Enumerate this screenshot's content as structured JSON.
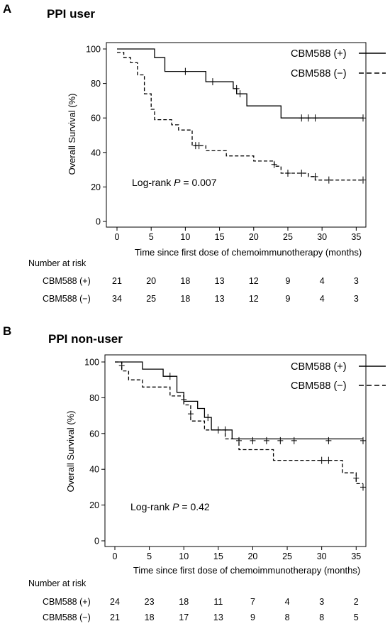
{
  "chart_data": [
    {
      "type": "line",
      "panel_letter": "A",
      "title": "PPI user",
      "xlabel": "Time since first dose of chemoimmunotherapy (months)",
      "ylabel": "Overall Survival (%)",
      "xlim": [
        0,
        36
      ],
      "ylim": [
        0,
        100
      ],
      "x_ticks": [
        0,
        5,
        10,
        15,
        20,
        25,
        30,
        35
      ],
      "y_ticks": [
        0,
        20,
        40,
        60,
        80,
        100
      ],
      "legend": "top-right",
      "grid": false,
      "annotation": {
        "prefix": "Log-rank ",
        "p_symbol": "P",
        "suffix": " = 0.007"
      },
      "series": [
        {
          "name": "CBM588 (+)",
          "style": "solid",
          "steps": [
            [
              0,
              100
            ],
            [
              5.5,
              100
            ],
            [
              5.5,
              95
            ],
            [
              7,
              95
            ],
            [
              7,
              87
            ],
            [
              13,
              87
            ],
            [
              13,
              81
            ],
            [
              17,
              81
            ],
            [
              17,
              77
            ],
            [
              17.5,
              77
            ],
            [
              17.5,
              74
            ],
            [
              19,
              74
            ],
            [
              19,
              67
            ],
            [
              24,
              67
            ],
            [
              24,
              60
            ],
            [
              36,
              60
            ]
          ],
          "censors": [
            [
              10,
              87
            ],
            [
              14,
              81
            ],
            [
              17.5,
              77
            ],
            [
              18,
              74
            ],
            [
              27,
              60
            ],
            [
              28,
              60
            ],
            [
              29,
              60
            ],
            [
              36,
              60
            ]
          ]
        },
        {
          "name": "CBM588 (−)",
          "style": "dashed",
          "steps": [
            [
              0,
              98
            ],
            [
              1,
              98
            ],
            [
              1,
              95
            ],
            [
              2,
              95
            ],
            [
              2,
              92
            ],
            [
              3,
              92
            ],
            [
              3,
              85
            ],
            [
              4,
              85
            ],
            [
              4,
              74
            ],
            [
              5,
              74
            ],
            [
              5,
              65
            ],
            [
              5.5,
              65
            ],
            [
              5.5,
              59
            ],
            [
              8,
              59
            ],
            [
              8,
              56
            ],
            [
              9,
              56
            ],
            [
              9,
              53
            ],
            [
              11,
              53
            ],
            [
              11,
              44
            ],
            [
              13,
              44
            ],
            [
              13,
              41
            ],
            [
              16,
              41
            ],
            [
              16,
              38
            ],
            [
              20,
              38
            ],
            [
              20,
              35
            ],
            [
              23,
              35
            ],
            [
              23,
              32
            ],
            [
              24,
              32
            ],
            [
              24,
              28
            ],
            [
              28,
              28
            ],
            [
              28,
              26
            ],
            [
              29,
              26
            ],
            [
              29,
              24
            ],
            [
              36,
              24
            ]
          ],
          "censors": [
            [
              11.5,
              44
            ],
            [
              12,
              44
            ],
            [
              23,
              33
            ],
            [
              25,
              28
            ],
            [
              27,
              28
            ],
            [
              29,
              26
            ],
            [
              31,
              24
            ],
            [
              36,
              24
            ]
          ]
        }
      ],
      "risk_table": {
        "title": "Number at risk",
        "times": [
          0,
          5,
          10,
          15,
          20,
          25,
          30,
          35
        ],
        "rows": [
          {
            "label": "CBM588 (+)",
            "values": [
              "21",
              "20",
              "18",
              "13",
              "12",
              "9",
              "4",
              "3"
            ]
          },
          {
            "label": "CBM588 (−)",
            "values": [
              "34",
              "25",
              "18",
              "13",
              "12",
              "9",
              "4",
              "3"
            ]
          }
        ]
      }
    },
    {
      "type": "line",
      "panel_letter": "B",
      "title": "PPI non-user",
      "xlabel": "Time since first dose of chemoimmunotherapy (months)",
      "ylabel": "Overall Survival (%)",
      "xlim": [
        0,
        36
      ],
      "ylim": [
        0,
        100
      ],
      "x_ticks": [
        0,
        5,
        10,
        15,
        20,
        25,
        30,
        35
      ],
      "y_ticks": [
        0,
        20,
        40,
        60,
        80,
        100
      ],
      "legend": "top-right",
      "grid": false,
      "annotation": {
        "prefix": "Log-rank ",
        "p_symbol": "P",
        "suffix": " = 0.42"
      },
      "series": [
        {
          "name": "CBM588 (+)",
          "style": "solid",
          "steps": [
            [
              0,
              100
            ],
            [
              4,
              100
            ],
            [
              4,
              96
            ],
            [
              7,
              96
            ],
            [
              7,
              92
            ],
            [
              9,
              92
            ],
            [
              9,
              83
            ],
            [
              10,
              83
            ],
            [
              10,
              78
            ],
            [
              12,
              78
            ],
            [
              12,
              74
            ],
            [
              13,
              74
            ],
            [
              13,
              69
            ],
            [
              14,
              69
            ],
            [
              14,
              62
            ],
            [
              17,
              62
            ],
            [
              17,
              57
            ],
            [
              36,
              57
            ]
          ],
          "censors": [
            [
              8,
              92
            ],
            [
              10,
              79
            ],
            [
              13.5,
              69
            ],
            [
              15,
              62
            ],
            [
              16,
              62
            ],
            [
              18,
              56
            ],
            [
              20,
              56
            ],
            [
              22,
              56
            ],
            [
              24,
              56
            ],
            [
              26,
              56
            ],
            [
              31,
              56
            ],
            [
              36,
              56
            ]
          ]
        },
        {
          "name": "CBM588 (−)",
          "style": "dashed",
          "steps": [
            [
              0,
              100
            ],
            [
              1,
              100
            ],
            [
              1,
              95
            ],
            [
              2,
              95
            ],
            [
              2,
              90
            ],
            [
              4,
              90
            ],
            [
              4,
              86
            ],
            [
              8,
              86
            ],
            [
              8,
              81
            ],
            [
              10,
              81
            ],
            [
              10,
              76
            ],
            [
              11,
              76
            ],
            [
              11,
              67
            ],
            [
              13,
              67
            ],
            [
              13,
              62
            ],
            [
              16,
              62
            ],
            [
              16,
              57
            ],
            [
              18,
              57
            ],
            [
              18,
              51
            ],
            [
              23,
              51
            ],
            [
              23,
              45
            ],
            [
              30,
              45
            ],
            [
              30,
              45
            ],
            [
              33,
              45
            ],
            [
              33,
              38
            ],
            [
              35,
              38
            ],
            [
              35,
              32
            ],
            [
              36,
              32
            ]
          ],
          "censors": [
            [
              1,
              98
            ],
            [
              11,
              71
            ],
            [
              30,
              45
            ],
            [
              31,
              45
            ],
            [
              35,
              35
            ],
            [
              36,
              30
            ]
          ]
        }
      ],
      "risk_table": {
        "title": "Number at risk",
        "times": [
          0,
          5,
          10,
          15,
          20,
          25,
          30,
          35
        ],
        "rows": [
          {
            "label": "CBM588 (+)",
            "values": [
              "24",
              "23",
              "18",
              "11",
              "7",
              "4",
              "3",
              "2"
            ]
          },
          {
            "label": "CBM588 (−)",
            "values": [
              "21",
              "18",
              "17",
              "13",
              "9",
              "8",
              "8",
              "5"
            ]
          }
        ]
      }
    }
  ]
}
